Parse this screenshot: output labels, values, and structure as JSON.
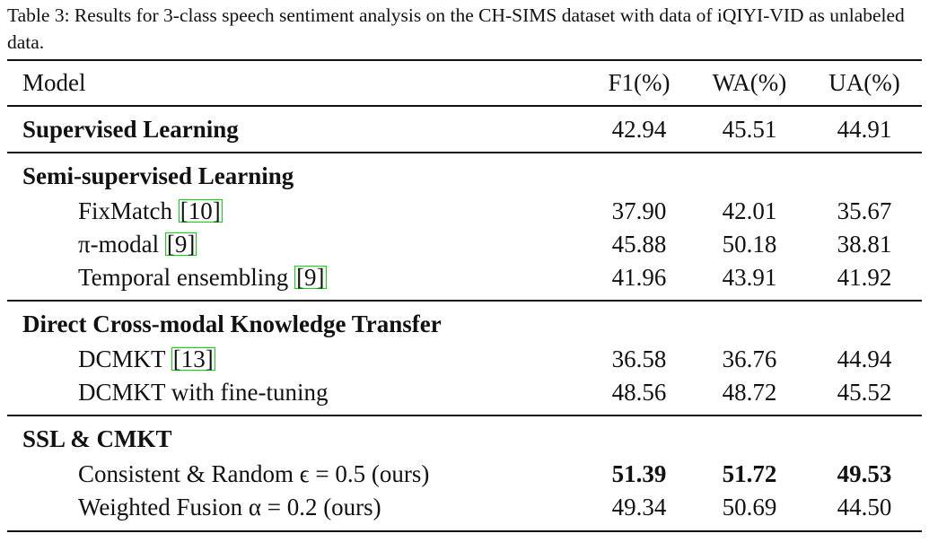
{
  "caption": "Table 3: Results for 3-class speech sentiment analysis on the CH-SIMS dataset with data of iQIYI-VID as unlabeled data.",
  "table": {
    "header": [
      "Model",
      "F1(%)",
      "WA(%)",
      "UA(%)"
    ],
    "groups": [
      {
        "title": "Supervised Learning",
        "values": [
          "42.94",
          "45.51",
          "44.91"
        ]
      },
      {
        "title": "Semi-supervised Learning",
        "rows": [
          {
            "model": "FixMatch",
            "cite": "[10]",
            "values": [
              "37.90",
              "42.01",
              "35.67"
            ]
          },
          {
            "model": "π-modal",
            "cite": "[9]",
            "values": [
              "45.88",
              "50.18",
              "38.81"
            ]
          },
          {
            "model": "Temporal ensembling",
            "cite": "[9]",
            "values": [
              "41.96",
              "43.91",
              "41.92"
            ]
          }
        ]
      },
      {
        "title": "Direct Cross-modal Knowledge Transfer",
        "rows": [
          {
            "model": "DCMKT",
            "cite": "[13]",
            "values": [
              "36.58",
              "36.76",
              "44.94"
            ]
          },
          {
            "model": "DCMKT with fine-tuning",
            "values": [
              "48.56",
              "48.72",
              "45.52"
            ]
          }
        ]
      },
      {
        "title": "SSL & CMKT",
        "rows": [
          {
            "model": "Consistent & Random ϵ = 0.5 (ours)",
            "bold": true,
            "values": [
              "51.39",
              "51.72",
              "49.53"
            ]
          },
          {
            "model": "Weighted Fusion α = 0.2 (ours)",
            "values": [
              "49.34",
              "50.69",
              "44.50"
            ]
          }
        ]
      }
    ]
  }
}
